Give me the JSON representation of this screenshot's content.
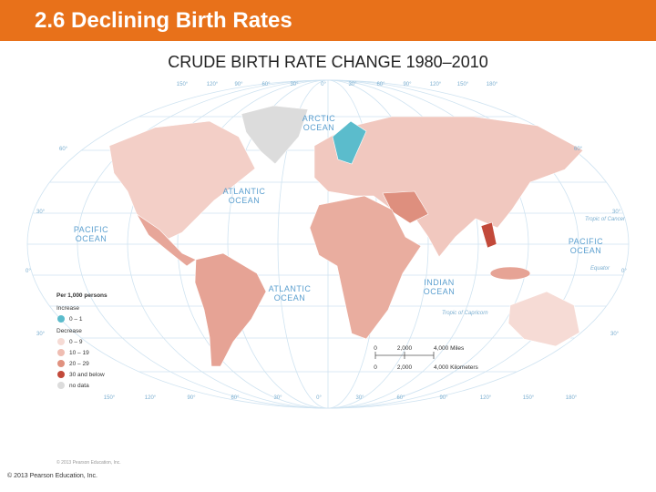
{
  "header": {
    "title": "2.6 Declining Birth Rates"
  },
  "map": {
    "title": "CRUDE BIRTH RATE CHANGE 1980–2010",
    "longitudes": [
      "150°",
      "120°",
      "90°",
      "60°",
      "30°",
      "0°",
      "30°",
      "60°",
      "90°",
      "120°",
      "150°",
      "180°"
    ],
    "latitudes_left": [
      "60°",
      "30°",
      "0°",
      "30°"
    ],
    "latitudes_right": [
      "60°",
      "30°",
      "0°",
      "30°"
    ],
    "lines": [
      "Tropic of Cancer",
      "Equator",
      "Tropic of Capricorn"
    ],
    "oceans": [
      [
        "ARCTIC",
        "OCEAN"
      ],
      [
        "ATLANTIC",
        "OCEAN"
      ],
      [
        "PACIFIC",
        "OCEAN"
      ],
      [
        "PACIFIC",
        "OCEAN"
      ],
      [
        "ATLANTIC",
        "OCEAN"
      ],
      [
        "INDIAN",
        "OCEAN"
      ]
    ],
    "legend": {
      "title": "Per 1,000 persons",
      "increase": "Increase",
      "decrease": "Decrease",
      "items": [
        {
          "label": "0 – 1",
          "color": "#5bbccc"
        },
        {
          "label": "0 – 9",
          "color": "#f6dbd5"
        },
        {
          "label": "10 – 19",
          "color": "#efbdb2"
        },
        {
          "label": "20 – 29",
          "color": "#e0917f"
        },
        {
          "label": "30 and below",
          "color": "#c2493a"
        },
        {
          "label": "no data",
          "color": "#dcdcdc"
        }
      ]
    },
    "scale": {
      "miles": [
        "0",
        "2,000",
        "4,000 Miles"
      ],
      "km": [
        "0",
        "2,000",
        "4,000 Kilometers"
      ]
    },
    "credit": "© 2013 Pearson Education, Inc."
  },
  "footer": "© 2013 Pearson Education, Inc."
}
